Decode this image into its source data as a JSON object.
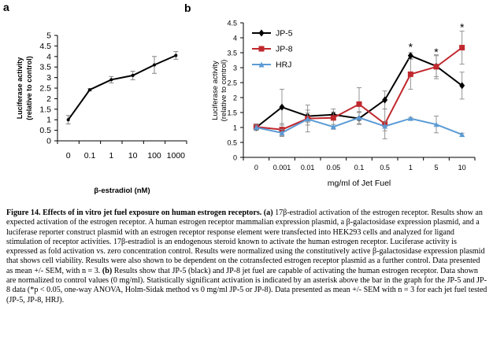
{
  "chart_data": [
    {
      "panel_label": "a",
      "type": "line",
      "categories": [
        "0",
        "0.1",
        "1",
        "10",
        "100",
        "1000"
      ],
      "series": [
        {
          "name": "β-estradiol",
          "color": "#000000",
          "values": [
            1.0,
            2.42,
            2.9,
            3.1,
            3.6,
            4.05
          ],
          "errors": [
            0.2,
            0.05,
            0.15,
            0.2,
            0.4,
            0.18
          ]
        }
      ],
      "xlabel": "β-estradiol (nM)",
      "ylabel_lines": [
        "Luciferase activity",
        "(relative to control)"
      ],
      "ylim": [
        0,
        5
      ],
      "yticks": [
        "0",
        "0.5",
        "1",
        "1.5",
        "2",
        "2.5",
        "3",
        "3.5",
        "4",
        "4.5",
        "5"
      ],
      "grid": false
    },
    {
      "panel_label": "b",
      "type": "line",
      "categories": [
        "0",
        "0.001",
        "0.01",
        "0.05",
        "0.1",
        "0.5",
        "1",
        "5",
        "10"
      ],
      "series": [
        {
          "name": "JP-5",
          "color": "#000000",
          "marker": "diamond",
          "values": [
            1.0,
            1.68,
            1.38,
            1.43,
            1.3,
            1.92,
            3.4,
            3.05,
            2.4
          ],
          "errors": [
            0.1,
            0.6,
            0.2,
            0.08,
            0.2,
            0.3,
            0.1,
            0.35,
            0.45
          ]
        },
        {
          "name": "JP-8",
          "color": "#c0282d",
          "marker": "square",
          "values": [
            1.02,
            0.93,
            1.3,
            1.32,
            1.78,
            1.12,
            2.78,
            3.03,
            3.67
          ],
          "errors": [
            0.1,
            0.2,
            0.45,
            0.3,
            0.55,
            0.5,
            0.5,
            0.4,
            0.55
          ]
        },
        {
          "name": "HRJ",
          "color": "#5b9bd5",
          "marker": "triangle",
          "values": [
            1.0,
            0.82,
            1.28,
            1.02,
            1.33,
            1.04,
            1.3,
            1.1,
            0.76
          ],
          "errors": [
            0.08,
            0.12,
            0.2,
            0.08,
            0.2,
            0.15,
            0.04,
            0.28,
            0.05
          ]
        }
      ],
      "significance": [
        {
          "category": "1",
          "mark": "*",
          "value": 3.72
        },
        {
          "category": "5",
          "mark": "*",
          "value": 3.55
        },
        {
          "category": "10",
          "mark": "*",
          "value": 4.38
        }
      ],
      "xlabel": "mg/ml of Jet Fuel",
      "ylabel_lines": [
        "Luciferase activity",
        "(relative to control)"
      ],
      "ylim": [
        0,
        4.5
      ],
      "yticks": [
        "0",
        "0.5",
        "1",
        "1.5",
        "2",
        "2.5",
        "3",
        "3.5",
        "4",
        "4.5"
      ],
      "legend": "top-left",
      "grid": false
    }
  ],
  "caption": {
    "title": "Figure 14. Effects of in vitro jet fuel exposure on human estrogen receptors. (a)",
    "part1": " 17β-estradiol activation of the estrogen receptor. Results show an expected activation of the estrogen receptor. A human estrogen receptor mammalian expression plasmid, a β-galactosidase expression plasmid, and a luciferase reporter construct plasmid with an estrogen receptor response element were transfected into HEK293 cells and analyzed for ligand stimulation of receptor activities. 17β-estradiol is an endogenous steroid known to activate the human estrogen receptor. Luciferase activity is expressed as fold activation vs. zero concentration control. Results were normalized using the constitutively active β-galactosidase expression plasmid that shows cell viability. Results were also shown to be dependent on the cotransfected estrogen receptor plasmid as a further control. Data presented as mean +/- SEM, with n = 3.",
    "b_label": " (b)",
    "part2": " Results show that JP-5 (black) and JP-8 jet fuel are capable of activating the human estrogen receptor. Data shown are normalized to control values (0 mg/ml). Statistically significant activation is indicated by an asterisk above the bar in the graph for the JP-5 and JP-8 data (*p < 0.05, one-way ANOVA, Holm-Sidak method vs 0 mg/ml JP-5 or JP-8). Data presented as mean +/- SEM with n = 3 for each jet fuel tested (JP-5, JP-8, HRJ)."
  }
}
